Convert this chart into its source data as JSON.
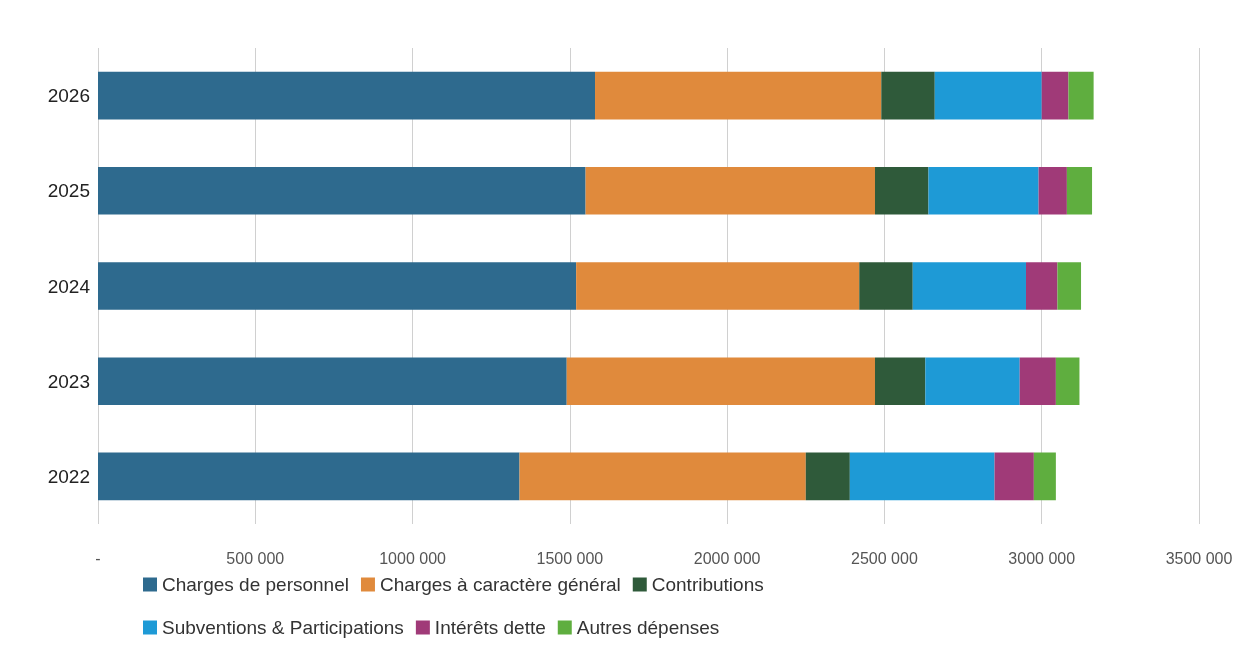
{
  "chart_data": {
    "type": "bar",
    "orientation": "horizontal",
    "stacked": true,
    "categories": [
      "2026",
      "2025",
      "2024",
      "2023",
      "2022"
    ],
    "series": [
      {
        "name": "Charges de personnel",
        "color": "#2e6a8e",
        "values": [
          1580000,
          1550000,
          1520000,
          1490000,
          1340000
        ]
      },
      {
        "name": "Charges à caractère général",
        "color": "#e08a3c",
        "values": [
          910000,
          920000,
          900000,
          980000,
          910000
        ]
      },
      {
        "name": "Contributions",
        "color": "#2f5a3a",
        "values": [
          170000,
          170000,
          170000,
          160000,
          140000
        ]
      },
      {
        "name": "Subventions & Participations",
        "color": "#1e9ad6",
        "values": [
          340000,
          350000,
          360000,
          300000,
          460000
        ]
      },
      {
        "name": "Intérêts dette",
        "color": "#a03a78",
        "values": [
          85000,
          90000,
          100000,
          115000,
          125000
        ]
      },
      {
        "name": "Autres dépenses",
        "color": "#5fae3f",
        "values": [
          80000,
          80000,
          75000,
          75000,
          70000
        ]
      }
    ],
    "xlim": [
      0,
      3500000
    ],
    "xticks": [
      {
        "value": 0,
        "label": "-"
      },
      {
        "value": 500000,
        "label": "500 000"
      },
      {
        "value": 1000000,
        "label": "1000 000"
      },
      {
        "value": 1500000,
        "label": "1500 000"
      },
      {
        "value": 2000000,
        "label": "2000 000"
      },
      {
        "value": 2500000,
        "label": "2500 000"
      },
      {
        "value": 3000000,
        "label": "3000 000"
      },
      {
        "value": 3500000,
        "label": "3500 000"
      }
    ],
    "grid": "x",
    "legend": "bottom"
  }
}
